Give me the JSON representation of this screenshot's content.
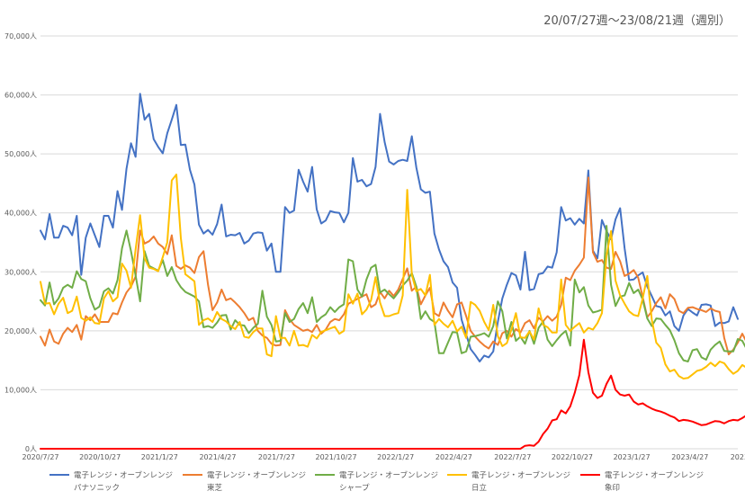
{
  "date_range": "20/07/27週～23/08/21週（週別）",
  "chart_data": {
    "type": "line",
    "title": "",
    "xlabel": "",
    "ylabel": "",
    "ylim": [
      0,
      70000
    ],
    "y_ticks": [
      0,
      10000,
      20000,
      30000,
      40000,
      50000,
      60000,
      70000
    ],
    "y_tick_labels": [
      "0人",
      "10,000人",
      "20,000人",
      "30,000人",
      "40,000人",
      "50,000人",
      "60,000人",
      "70,000人"
    ],
    "x_start": "2020-07-27",
    "x_interval": "weekly",
    "x_tick_labels": [
      "2020/7/27",
      "2020/10/27",
      "2021/1/27",
      "2021/4/27",
      "2021/7/27",
      "2021/10/27",
      "2022/1/27",
      "2022/4/27",
      "2022/7/27",
      "2022/10/27",
      "2023/1/27",
      "2023/4/27",
      "2023/7/27"
    ],
    "grid": "horizontal",
    "legend_position": "bottom",
    "series": [
      {
        "name": "電子レンジ・オーブンレンジ\nパナソニック",
        "color": "#4472C4",
        "values": [
          37000,
          35500,
          39800,
          35800,
          35800,
          37800,
          37500,
          36200,
          39500,
          29500,
          35800,
          38200,
          36200,
          34200,
          39500,
          39500,
          37500,
          43700,
          40500,
          47500,
          51800,
          49500,
          60200,
          55800,
          56800,
          52500,
          51200,
          50100,
          53500,
          55800,
          58300,
          51500,
          51600,
          47300,
          44800,
          38000,
          36500,
          37100,
          36300,
          38100,
          41400,
          36000,
          36300,
          36200,
          36600,
          34800,
          35300,
          36500,
          36700,
          36600,
          33600,
          34800,
          30000,
          30000,
          41000,
          40000,
          40400,
          47300,
          45300,
          43600,
          47800,
          40600,
          38200,
          38700,
          40300,
          40100,
          40000,
          38400,
          40000,
          49300,
          45300,
          45600,
          44500,
          44900,
          47800,
          56800,
          52000,
          48700,
          48200,
          48800,
          49000,
          48800,
          53000,
          47700,
          44000,
          43400,
          43600,
          36500,
          33800,
          31800,
          30800,
          28200,
          27300,
          21900,
          19400,
          16900,
          15900,
          14800,
          15800,
          15500,
          16500,
          21500,
          25500,
          27800,
          29800,
          29400,
          27000,
          33400,
          26900,
          27100,
          29600,
          29800,
          30900,
          30700,
          33300,
          41000,
          38700,
          39100,
          38000,
          39000,
          38200,
          47200,
          33600,
          32300,
          38800,
          36900,
          35500,
          38900,
          40800,
          34000,
          28600,
          28700,
          29400,
          29900,
          27500,
          25900,
          24200,
          24000,
          22600,
          23300,
          20800,
          20000,
          22600,
          23700,
          23100,
          22600,
          24400,
          24500,
          24300,
          20800,
          21400,
          21300,
          21600,
          24000,
          22000
        ],
        "row": 0
      },
      {
        "name": "電子レンジ・オーブンレンジ\n東芝",
        "color": "#ED7D31",
        "values": [
          19000,
          17500,
          20200,
          18200,
          17800,
          19500,
          20500,
          19800,
          21000,
          18500,
          22500,
          21800,
          22800,
          21500,
          21500,
          21500,
          23000,
          22800,
          24800,
          26500,
          27500,
          29200,
          37000,
          34800,
          35200,
          36000,
          34800,
          34200,
          33000,
          36200,
          31000,
          30500,
          31100,
          30700,
          29800,
          32500,
          33500,
          27800,
          23500,
          24800,
          27000,
          25200,
          25500,
          24800,
          24000,
          23000,
          21800,
          22200,
          20000,
          19200,
          18800,
          17800,
          17500,
          17600,
          23500,
          22000,
          21000,
          20500,
          20000,
          20200,
          19800,
          21000,
          19500,
          20200,
          21500,
          22000,
          21800,
          22800,
          24600,
          25000,
          25400,
          25800,
          26200,
          24000,
          24500,
          26600,
          25500,
          26800,
          25900,
          27000,
          28800,
          30600,
          26800,
          27500,
          24500,
          26000,
          27300,
          23000,
          22500,
          24800,
          23400,
          22300,
          24500,
          24800,
          22500,
          20000,
          19000,
          18200,
          17500,
          17000,
          18200,
          17600,
          19600,
          20000,
          19000,
          20300,
          19700,
          21300,
          21800,
          20400,
          22200,
          21600,
          22500,
          21700,
          22400,
          24400,
          29000,
          28600,
          30200,
          31200,
          32400,
          46000,
          33300,
          31700,
          32000,
          30700,
          30500,
          33400,
          31800,
          29300,
          29700,
          30300,
          29000,
          25700,
          22300,
          23300,
          24700,
          25700,
          23800,
          26200,
          25400,
          23400,
          23000,
          23900,
          24000,
          23700,
          23500,
          23200,
          23800,
          23400,
          23200,
          18800,
          16000,
          16800,
          18000,
          19500,
          18000
        ],
        "row": 1
      },
      {
        "name": "電子レンジ・オーブンレンジ\nシャープ",
        "color": "#70AD47",
        "values": [
          25200,
          24300,
          28200,
          24500,
          25500,
          27300,
          27800,
          27300,
          30100,
          28800,
          28400,
          25500,
          23600,
          24100,
          26700,
          27200,
          26300,
          28600,
          34000,
          37000,
          33500,
          29400,
          25000,
          33500,
          31000,
          30600,
          30200,
          32000,
          29300,
          30800,
          28600,
          27400,
          26600,
          26200,
          25800,
          25000,
          20600,
          20800,
          20500,
          21400,
          22600,
          22700,
          20200,
          21800,
          21000,
          20900,
          19600,
          20500,
          21200,
          26800,
          22400,
          21000,
          18200,
          18300,
          23000,
          21500,
          22000,
          23700,
          24700,
          23000,
          25700,
          21500,
          22300,
          22800,
          24000,
          23200,
          24000,
          24500,
          32100,
          31800,
          27000,
          25800,
          28700,
          30700,
          31200,
          26500,
          27000,
          26200,
          25500,
          26500,
          27700,
          28500,
          29800,
          27500,
          22000,
          23300,
          22000,
          21500,
          16200,
          16200,
          18000,
          19800,
          19700,
          16200,
          16500,
          19000,
          19100,
          19300,
          19600,
          19000,
          20800,
          25000,
          23300,
          18700,
          21500,
          18300,
          19000,
          17800,
          20000,
          17800,
          20500,
          21600,
          18500,
          17400,
          18400,
          19300,
          20000,
          17500,
          28700,
          26500,
          27400,
          24300,
          23100,
          23300,
          23600,
          37800,
          27800,
          24200,
          25800,
          26000,
          28100,
          26400,
          27000,
          25300,
          22100,
          20800,
          22100,
          22000,
          21000,
          20100,
          18400,
          16200,
          15000,
          14800,
          16700,
          16900,
          15500,
          15100,
          16800,
          17600,
          18200,
          16600,
          16500,
          16500,
          18600,
          18300,
          16800
        ],
        "row": 0
      },
      {
        "name": "電子レンジ・オーブンレンジ\n日立",
        "color": "#FFC000",
        "values": [
          28300,
          24600,
          24700,
          22800,
          24600,
          25600,
          23000,
          23400,
          25800,
          22200,
          21700,
          22300,
          21300,
          21200,
          25500,
          26700,
          25000,
          25700,
          31400,
          30200,
          27300,
          33800,
          39600,
          32300,
          30700,
          30500,
          30100,
          32500,
          35000,
          45500,
          46500,
          35700,
          29600,
          29000,
          28400,
          21000,
          21800,
          22100,
          21500,
          23200,
          22000,
          21600,
          20800,
          20300,
          21500,
          19000,
          18800,
          19800,
          20400,
          20400,
          16000,
          15700,
          22500,
          18800,
          18800,
          17500,
          20000,
          17500,
          17600,
          17300,
          19300,
          18700,
          19800,
          20100,
          20400,
          20700,
          19500,
          20000,
          26200,
          24600,
          26300,
          22800,
          23600,
          25200,
          29100,
          24800,
          22500,
          22500,
          22800,
          23000,
          26000,
          43900,
          29500,
          26700,
          27100,
          26000,
          29500,
          21000,
          22000,
          21200,
          20600,
          21700,
          19900,
          20700,
          18800,
          24900,
          24400,
          23400,
          21500,
          20100,
          24400,
          19100,
          17400,
          17900,
          20200,
          23000,
          18900,
          18800,
          19900,
          18500,
          23800,
          21000,
          20600,
          19700,
          19700,
          28700,
          21000,
          20000,
          20700,
          21300,
          19700,
          20500,
          20200,
          21300,
          23000,
          32800,
          36900,
          28500,
          26000,
          24600,
          23300,
          22700,
          22500,
          25500,
          29300,
          21900,
          18000,
          17100,
          14300,
          13100,
          13400,
          12300,
          11900,
          12000,
          12600,
          13200,
          13400,
          13900,
          14600,
          14000,
          14800,
          14500,
          13500,
          12700,
          13200,
          14200,
          13700
        ],
        "row": 1
      },
      {
        "name": "電子レンジ・オーブンレンジ\n象印",
        "color": "#FF0000",
        "values": [
          0,
          0,
          0,
          0,
          0,
          0,
          0,
          0,
          0,
          0,
          0,
          0,
          0,
          0,
          0,
          0,
          0,
          0,
          0,
          0,
          0,
          0,
          0,
          0,
          0,
          0,
          0,
          0,
          0,
          0,
          0,
          0,
          0,
          0,
          0,
          0,
          0,
          0,
          0,
          0,
          0,
          0,
          0,
          0,
          0,
          0,
          0,
          0,
          0,
          0,
          0,
          0,
          0,
          0,
          0,
          0,
          0,
          0,
          0,
          0,
          0,
          0,
          0,
          0,
          0,
          0,
          0,
          0,
          0,
          0,
          0,
          0,
          0,
          0,
          0,
          0,
          0,
          0,
          0,
          0,
          0,
          0,
          0,
          0,
          0,
          0,
          0,
          0,
          0,
          0,
          0,
          0,
          0,
          0,
          0,
          0,
          0,
          0,
          0,
          0,
          0,
          0,
          0,
          0,
          0,
          0,
          0,
          500,
          600,
          500,
          1200,
          2500,
          3400,
          4800,
          5000,
          6500,
          6000,
          7200,
          9500,
          12500,
          18500,
          13000,
          9500,
          8600,
          9000,
          11000,
          12400,
          10000,
          9200,
          9000,
          9200,
          8000,
          7500,
          7700,
          7200,
          6800,
          6500,
          6300,
          6000,
          5600,
          5300,
          4700,
          4900,
          4800,
          4600,
          4300,
          4000,
          4100,
          4400,
          4700,
          4600,
          4300,
          4700,
          4900,
          4800,
          5200,
          5700
        ]
      }
    ]
  }
}
